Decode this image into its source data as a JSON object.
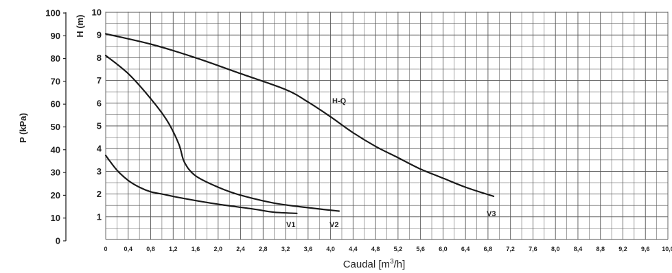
{
  "chart_data": {
    "type": "line",
    "title": "",
    "xlabel": "Caudal [m³/h]",
    "ylabel_left": "P (kPa)",
    "ylabel_right": "H (m)",
    "x_ticks": [
      "0",
      "0,4",
      "0,8",
      "1,2",
      "1,6",
      "2,0",
      "2,4",
      "2,8",
      "3,2",
      "3,6",
      "4,0",
      "4,4",
      "4,8",
      "5,2",
      "5,6",
      "6,0",
      "6,4",
      "6,8",
      "7,2",
      "7,6",
      "8,0",
      "8,4",
      "8,8",
      "9,2",
      "9,6",
      "10,0"
    ],
    "p_ticks": [
      "0",
      "10",
      "20",
      "30",
      "40",
      "50",
      "60",
      "70",
      "80",
      "90",
      "100"
    ],
    "h_ticks": [
      "1",
      "2",
      "3",
      "4",
      "5",
      "6",
      "7",
      "8",
      "9",
      "10"
    ],
    "xlim": [
      0,
      10
    ],
    "hlim": [
      0,
      10
    ],
    "grid": true,
    "series": [
      {
        "name": "H-Q",
        "x": [
          0,
          0.8,
          1.6,
          2.4,
          3.2,
          3.6,
          4.0,
          4.4,
          4.8,
          5.2,
          5.6,
          6.0,
          6.4,
          6.9
        ],
        "y": [
          9.05,
          8.6,
          8.0,
          7.3,
          6.6,
          6.05,
          5.4,
          4.7,
          4.1,
          3.6,
          3.1,
          2.7,
          2.3,
          1.9
        ]
      },
      {
        "name": "V1",
        "x": [
          0,
          0.2,
          0.4,
          0.6,
          0.8,
          1.0,
          1.4,
          2.0,
          2.6,
          3.0,
          3.4
        ],
        "y": [
          3.7,
          3.05,
          2.6,
          2.3,
          2.1,
          2.0,
          1.8,
          1.55,
          1.35,
          1.2,
          1.15
        ]
      },
      {
        "name": "V2",
        "x": [
          0,
          0.4,
          0.8,
          1.1,
          1.3,
          1.4,
          1.6,
          2.0,
          2.4,
          3.0,
          3.6,
          4.15
        ],
        "y": [
          8.1,
          7.3,
          6.2,
          5.2,
          4.2,
          3.4,
          2.8,
          2.3,
          1.95,
          1.6,
          1.4,
          1.25
        ]
      }
    ]
  }
}
